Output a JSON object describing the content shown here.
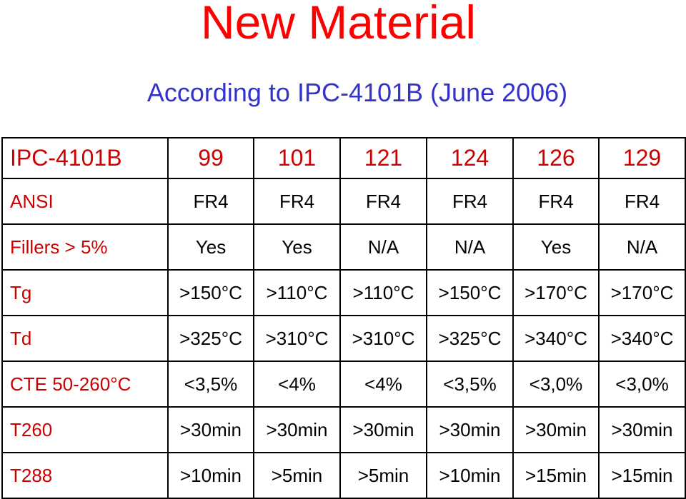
{
  "title": "New Material",
  "subtitle": "According to IPC-4101B (June 2006)",
  "table": {
    "header": [
      "IPC-4101B",
      "99",
      "101",
      "121",
      "124",
      "126",
      "129"
    ],
    "rows": [
      {
        "label": "ANSI",
        "cells": [
          "FR4",
          "FR4",
          "FR4",
          "FR4",
          "FR4",
          "FR4"
        ]
      },
      {
        "label": "Fillers > 5%",
        "cells": [
          "Yes",
          "Yes",
          "N/A",
          "N/A",
          "Yes",
          "N/A"
        ]
      },
      {
        "label": "Tg",
        "cells": [
          ">150°C",
          ">110°C",
          ">110°C",
          ">150°C",
          ">170°C",
          ">170°C"
        ]
      },
      {
        "label": "Td",
        "cells": [
          ">325°C",
          ">310°C",
          ">310°C",
          ">325°C",
          ">340°C",
          ">340°C"
        ]
      },
      {
        "label": "CTE 50-260°C",
        "cells": [
          "<3,5%",
          "<4%",
          "<4%",
          "<3,5%",
          "<3,0%",
          "<3,0%"
        ]
      },
      {
        "label": "T260",
        "cells": [
          ">30min",
          ">30min",
          ">30min",
          ">30min",
          ">30min",
          ">30min"
        ]
      },
      {
        "label": "T288",
        "cells": [
          ">10min",
          ">5min",
          ">5min",
          ">10min",
          ">15min",
          ">15min"
        ]
      }
    ]
  },
  "colors": {
    "title": "#ff0000",
    "subtitle": "#3333cc",
    "label": "#cc0000",
    "value": "#000000",
    "border": "#000000"
  }
}
